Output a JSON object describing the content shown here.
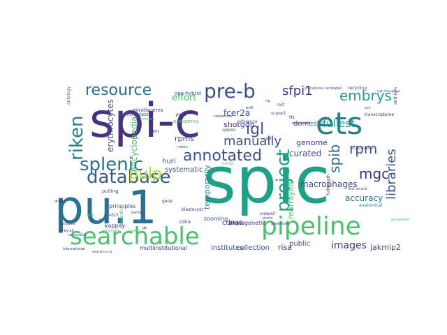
{
  "word_cloud": {
    "words": [
      {
        "text": "spi-c",
        "color": "#46327e"
      },
      {
        "text": "spic",
        "color": "#1fa187"
      },
      {
        "text": "pu.1",
        "color": "#2c728e"
      },
      {
        "text": "searchable",
        "color": "#4ac16d"
      },
      {
        "text": "pipeline",
        "color": "#4ac16d"
      },
      {
        "text": "ets",
        "color": "#277f8e"
      },
      {
        "text": "database",
        "color": "#365c8d"
      },
      {
        "text": "splenic",
        "color": "#2c728e"
      },
      {
        "text": "annotated",
        "color": "#3b528b"
      },
      {
        "text": "resource",
        "color": "#2c728e"
      },
      {
        "text": "pre-b",
        "color": "#3b528b"
      },
      {
        "text": "embrys",
        "color": "#1fa187"
      },
      {
        "text": "riken",
        "color": "#277f8e"
      },
      {
        "text": "pulp",
        "color": "#addc30"
      },
      {
        "text": "igl",
        "color": "#3b528b"
      },
      {
        "text": "spib",
        "color": "#2c728e"
      },
      {
        "text": "project",
        "color": "#20a486"
      },
      {
        "text": "rpm",
        "color": "#3b528b"
      },
      {
        "text": "mgc",
        "color": "#46327e"
      },
      {
        "text": "libraries",
        "color": "#3b528b"
      },
      {
        "text": "images",
        "color": "#46327e"
      },
      {
        "text": "manually",
        "color": "#3b528b"
      },
      {
        "text": "sfpi1",
        "color": "#46327e"
      },
      {
        "text": "fullest",
        "color": "#1fa187"
      },
      {
        "text": "macrophages",
        "color": "#3b528b"
      },
      {
        "text": "accuracy",
        "color": "#2c728e"
      },
      {
        "text": "jakmip2",
        "color": "#3b528b"
      },
      {
        "text": "erythrocytes",
        "color": "#3b528b"
      },
      {
        "text": "encyclopedia",
        "color": "#4ac16d"
      },
      {
        "text": "rearrayed",
        "color": "#4ac16d"
      },
      {
        "text": "temporarily",
        "color": "#277f8e"
      },
      {
        "text": "shotgun",
        "color": "#46327e"
      },
      {
        "text": "fcer2a",
        "color": "#3b528b"
      },
      {
        "text": "curated",
        "color": "#3b528b"
      },
      {
        "text": "genome",
        "color": "#46327e"
      },
      {
        "text": "domestic",
        "color": "#2c728e"
      },
      {
        "text": "systematic",
        "color": "#3b528b"
      },
      {
        "text": "huri",
        "color": "#3b528b"
      },
      {
        "text": "rpms",
        "color": "#3b528b"
      },
      {
        "text": "effort",
        "color": "#4ac16d"
      },
      {
        "text": "cdnas",
        "color": "#46327e"
      },
      {
        "text": "risa",
        "color": "#46327e"
      },
      {
        "text": "public",
        "color": "#3b528b"
      },
      {
        "text": "institutes",
        "color": "#3b528b"
      },
      {
        "text": "collection",
        "color": "#3b528b"
      },
      {
        "text": "multiinstitutional",
        "color": "#46327e"
      },
      {
        "text": "principles",
        "color": "#3b528b"
      },
      {
        "text": "kappay",
        "color": "#46327e"
      },
      {
        "text": "zooming",
        "color": "#3b528b"
      },
      {
        "text": "phylogenetic",
        "color": "#46327e"
      },
      {
        "text": "cdna",
        "color": "#46327e"
      },
      {
        "text": "iron",
        "color": "#46327e"
      },
      {
        "text": "one-hybrid",
        "color": "#3b528b"
      },
      {
        "text": "erythroblast",
        "color": "#3b528b"
      },
      {
        "text": "minilibraries",
        "color": "#46327e"
      },
      {
        "text": "protoarray",
        "color": "#4ac16d"
      },
      {
        "text": "pulling",
        "color": "#3b528b"
      },
      {
        "text": "ontology",
        "color": "#2c728e"
      },
      {
        "text": "transcriptome",
        "color": "#46327e"
      },
      {
        "text": "recycling",
        "color": "#46327e"
      },
      {
        "text": "anti-igm",
        "color": "#46327e"
      },
      {
        "text": "zebrafish",
        "color": "#4ac16d"
      },
      {
        "text": "international",
        "color": "#46327e"
      },
      {
        "text": "modules",
        "color": "#46327e"
      },
      {
        "text": "anatomical",
        "color": "#2c728e"
      },
      {
        "text": "full-length",
        "color": "#46327e"
      },
      {
        "text": "scpep1",
        "color": "#3b528b"
      },
      {
        "text": "spleen",
        "color": "#3b528b"
      },
      {
        "text": "reference",
        "color": "#3b528b"
      },
      {
        "text": "blastocyst",
        "color": "#46327e"
      },
      {
        "text": "viewed",
        "color": "#46327e"
      },
      {
        "text": "photo",
        "color": "#3b528b"
      },
      {
        "text": "inferred",
        "color": "#46327e"
      },
      {
        "text": "assembler",
        "color": "#46327e"
      },
      {
        "text": "first-strand",
        "color": "#3b528b"
      },
      {
        "text": "generated",
        "color": "#4ac16d"
      },
      {
        "text": "erg",
        "color": "#3b528b"
      },
      {
        "text": "etv5",
        "color": "#3b528b"
      },
      {
        "text": "gene",
        "color": "#46327e"
      },
      {
        "text": "all-by-all",
        "color": "#46327e"
      },
      {
        "text": "accessible",
        "color": "#3b528b"
      },
      {
        "text": "enhanced",
        "color": "#4ac16d"
      },
      {
        "text": "activated",
        "color": "#46327e"
      },
      {
        "text": "procedures",
        "color": "#3b528b"
      },
      {
        "text": "high-throughput",
        "color": "#3b528b"
      },
      {
        "text": "comprehensive",
        "color": "#3b528b"
      },
      {
        "text": "pooled",
        "color": "#4ac16d"
      },
      {
        "text": "barrier",
        "color": "#46327e"
      },
      {
        "text": "rotary",
        "color": "#3b528b"
      },
      {
        "text": "sequences",
        "color": "#46327e"
      },
      {
        "text": "drawn",
        "color": "#46327e"
      },
      {
        "text": "dual",
        "color": "#4ac16d"
      },
      {
        "text": "www.ebi.ac.uk",
        "color": "#46327e"
      },
      {
        "text": "chimeric",
        "color": "#4ac16d"
      },
      {
        "text": "bcl6",
        "color": "#3b528b"
      },
      {
        "text": "expressed",
        "color": "#46327e"
      },
      {
        "text": "rig",
        "color": "#46327e"
      },
      {
        "text": "rest",
        "color": "#3b528b"
      },
      {
        "text": "tfs",
        "color": "#46327e"
      },
      {
        "text": "syk",
        "color": "#3b528b"
      },
      {
        "text": "pax5",
        "color": "#46327e"
      },
      {
        "text": "spi",
        "color": "#46327e"
      },
      {
        "text": "mm10",
        "color": "#4ac16d"
      },
      {
        "text": "gb",
        "color": "#46327e"
      }
    ]
  }
}
